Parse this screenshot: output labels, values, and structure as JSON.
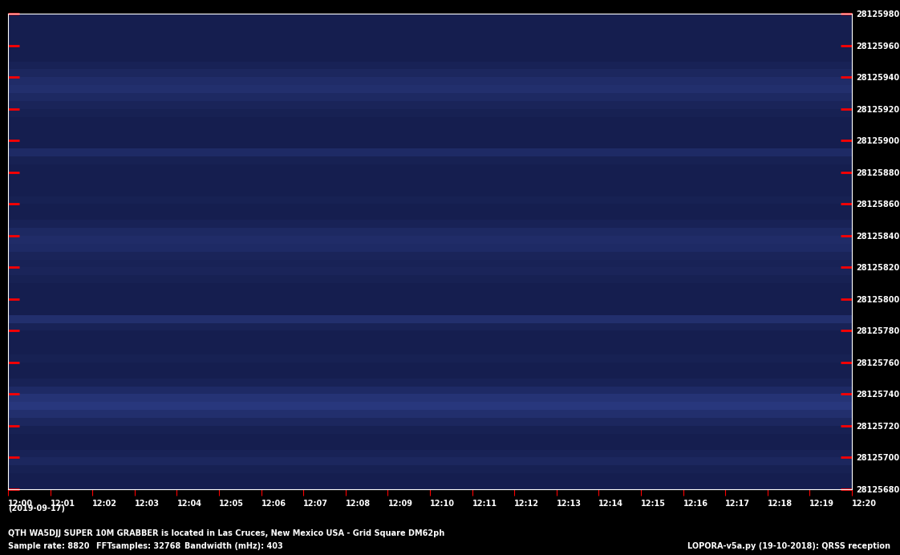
{
  "chart_data": {
    "type": "heatmap",
    "date_label": "(2019-09-17)",
    "caption": "QTH WA5DJJ SUPER 10M GRABBER is located in Las Cruces, New Mexico USA - Grid Square DM62ph",
    "footer": [
      "Sample rate: 8820",
      "FFTsamples: 32768",
      "Bandwidth (mHz): 403"
    ],
    "footer_right": "LOPORA-v5a.py (19-10-2018): QRSS reception",
    "x_bins": [
      0,
      20
    ],
    "y_bins": [
      28125680,
      28125685,
      28125690,
      28125695,
      28125700,
      28125705,
      28125710,
      28125715,
      28125720,
      28125725,
      28125730,
      28125735,
      28125740,
      28125745,
      28125750,
      28125755,
      28125760,
      28125765,
      28125770,
      28125775,
      28125780,
      28125785,
      28125790,
      28125795,
      28125800,
      28125805,
      28125810,
      28125815,
      28125820,
      28125825,
      28125830,
      28125835,
      28125840,
      28125845,
      28125850,
      28125855,
      28125860,
      28125865,
      28125870,
      28125875,
      28125880,
      28125885,
      28125890,
      28125895,
      28125900,
      28125905,
      28125910,
      28125915,
      28125920,
      28125925,
      28125930,
      28125935,
      28125940,
      28125945,
      28125950,
      28125955,
      28125960,
      28125965,
      28125970,
      28125975,
      28125980
    ],
    "cells": [
      [
        0.15
      ],
      [
        0.15
      ],
      [
        0.18
      ],
      [
        0.25
      ],
      [
        0.2
      ],
      [
        0.15
      ],
      [
        0.15
      ],
      [
        0.18
      ],
      [
        0.25
      ],
      [
        0.35
      ],
      [
        0.45
      ],
      [
        0.4
      ],
      [
        0.3
      ],
      [
        0.2
      ],
      [
        0.15
      ],
      [
        0.15
      ],
      [
        0.18
      ],
      [
        0.15
      ],
      [
        0.15
      ],
      [
        0.15
      ],
      [
        0.2
      ],
      [
        0.35
      ],
      [
        0.15
      ],
      [
        0.15
      ],
      [
        0.15
      ],
      [
        0.15
      ],
      [
        0.18
      ],
      [
        0.22
      ],
      [
        0.2
      ],
      [
        0.22
      ],
      [
        0.3
      ],
      [
        0.32
      ],
      [
        0.28
      ],
      [
        0.2
      ],
      [
        0.15
      ],
      [
        0.15
      ],
      [
        0.18
      ],
      [
        0.15
      ],
      [
        0.15
      ],
      [
        0.15
      ],
      [
        0.15
      ],
      [
        0.18
      ],
      [
        0.3
      ],
      [
        0.15
      ],
      [
        0.15
      ],
      [
        0.15
      ],
      [
        0.15
      ],
      [
        0.18
      ],
      [
        0.22
      ],
      [
        0.28
      ],
      [
        0.35
      ],
      [
        0.32
      ],
      [
        0.25
      ],
      [
        0.2
      ],
      [
        0.15
      ],
      [
        0.15
      ],
      [
        0.15
      ],
      [
        0.15
      ],
      [
        0.15
      ],
      [
        0.15
      ]
    ],
    "color_range": [
      0,
      1
    ],
    "colors": [
      "#0c1238",
      "#4a64d0"
    ],
    "xlim": [
      0,
      20
    ],
    "xticks": [
      {
        "value": 0,
        "label": "12:00"
      },
      {
        "value": 1,
        "label": "12:01"
      },
      {
        "value": 2,
        "label": "12:02"
      },
      {
        "value": 3,
        "label": "12:03"
      },
      {
        "value": 4,
        "label": "12:04"
      },
      {
        "value": 5,
        "label": "12:05"
      },
      {
        "value": 6,
        "label": "12:06"
      },
      {
        "value": 7,
        "label": "12:07"
      },
      {
        "value": 8,
        "label": "12:08"
      },
      {
        "value": 9,
        "label": "12:09"
      },
      {
        "value": 10,
        "label": "12:10"
      },
      {
        "value": 11,
        "label": "12:11"
      },
      {
        "value": 12,
        "label": "12:12"
      },
      {
        "value": 13,
        "label": "12:13"
      },
      {
        "value": 14,
        "label": "12:14"
      },
      {
        "value": 15,
        "label": "12:15"
      },
      {
        "value": 16,
        "label": "12:16"
      },
      {
        "value": 17,
        "label": "12:17"
      },
      {
        "value": 18,
        "label": "12:18"
      },
      {
        "value": 19,
        "label": "12:19"
      },
      {
        "value": 20,
        "label": "12:20"
      }
    ],
    "ylim": [
      28125680,
      28125980
    ],
    "yticks": [
      28125680,
      28125700,
      28125720,
      28125740,
      28125760,
      28125780,
      28125800,
      28125820,
      28125840,
      28125860,
      28125880,
      28125900,
      28125920,
      28125940,
      28125960,
      28125980
    ]
  }
}
